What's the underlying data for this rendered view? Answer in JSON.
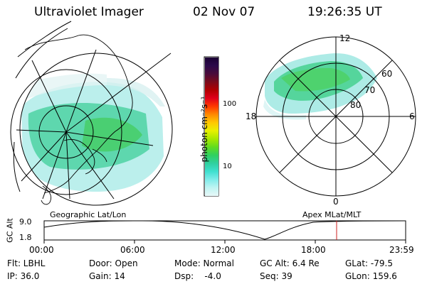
{
  "header": {
    "title": "Ultraviolet Imager",
    "date": "02 Nov 07",
    "time": "19:26:35 UT"
  },
  "colorbar": {
    "unit_label": "photon cm⁻²s⁻¹",
    "ticks": [
      "100",
      "10"
    ],
    "colors": [
      "#1a0033",
      "#2b0a4a",
      "#4a0a3a",
      "#7a0a1a",
      "#b00000",
      "#e0001a",
      "#ff3a00",
      "#ff8a00",
      "#ffc800",
      "#e8f000",
      "#a8e800",
      "#60dc20",
      "#2fd060",
      "#30d0a0",
      "#40e0d0",
      "#80ecea",
      "#c0f4f2",
      "#e8f8f8"
    ]
  },
  "left_map": {
    "caption": "Geographic Lat/Lon"
  },
  "right_map": {
    "caption": "Apex MLat/MLT",
    "mlt_labels": {
      "top": "12",
      "left": "18",
      "right": "6",
      "bottom": "0"
    },
    "mlat_labels": [
      "60",
      "70",
      "80"
    ]
  },
  "gc_alt_plot": {
    "ylabel": "GC Alt",
    "ymax": "9.0",
    "ymin": "1.8",
    "x_ticks": [
      "00:00",
      "06:00",
      "12:00",
      "18:00",
      "23:59"
    ],
    "marker_time": "19:26:35",
    "marker_color": "#cc2020"
  },
  "info": {
    "flt": "Flt: LBHL",
    "ip": "IP: 36.0",
    "door": "Door: Open",
    "gain": "Gain: 14",
    "mode": "Mode: Normal",
    "dsp": "Dsp:    -4.0",
    "gc_alt": "GC Alt: 6.4 Re",
    "seq": "Seq: 39",
    "glat": "GLat: -79.5",
    "glon": "GLon: 159.6"
  }
}
